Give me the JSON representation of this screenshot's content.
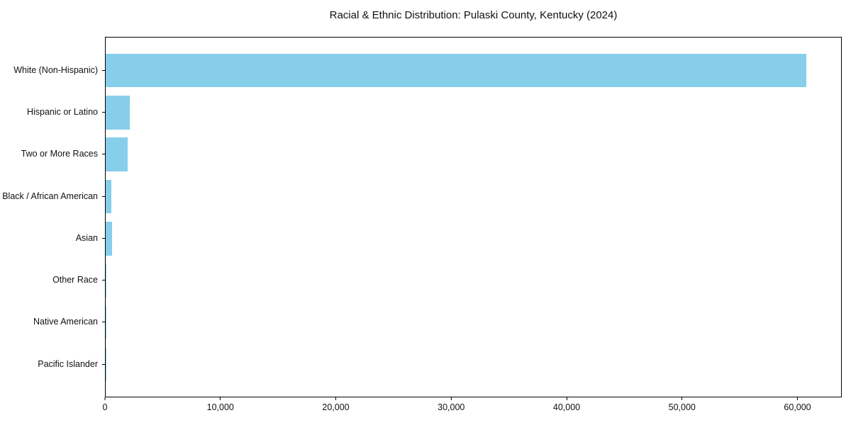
{
  "title": "Racial & Ethnic Distribution: Pulaski County, Kentucky (2024)",
  "colors": {
    "bar": "#87CEEB",
    "axis": "#000000",
    "text": "#111111",
    "background": "#ffffff"
  },
  "chart_data": {
    "type": "bar",
    "orientation": "horizontal",
    "title": "Racial & Ethnic Distribution: Pulaski County, Kentucky (2024)",
    "categories": [
      "White (Non-Hispanic)",
      "Hispanic or Latino",
      "Two or More Races",
      "Black / African American",
      "Asian",
      "Other Race",
      "Native American",
      "Pacific Islander"
    ],
    "values": [
      60800,
      2100,
      1880,
      500,
      550,
      90,
      40,
      15
    ],
    "bar_color": "#87CEEB",
    "xlabel": "",
    "ylabel": "",
    "xlim": [
      0,
      63840
    ],
    "xticks": {
      "values": [
        0,
        10000,
        20000,
        30000,
        40000,
        50000,
        60000
      ],
      "labels": [
        "0",
        "10,000",
        "20,000",
        "30,000",
        "40,000",
        "50,000",
        "60,000"
      ]
    },
    "grid": false,
    "legend": null
  }
}
